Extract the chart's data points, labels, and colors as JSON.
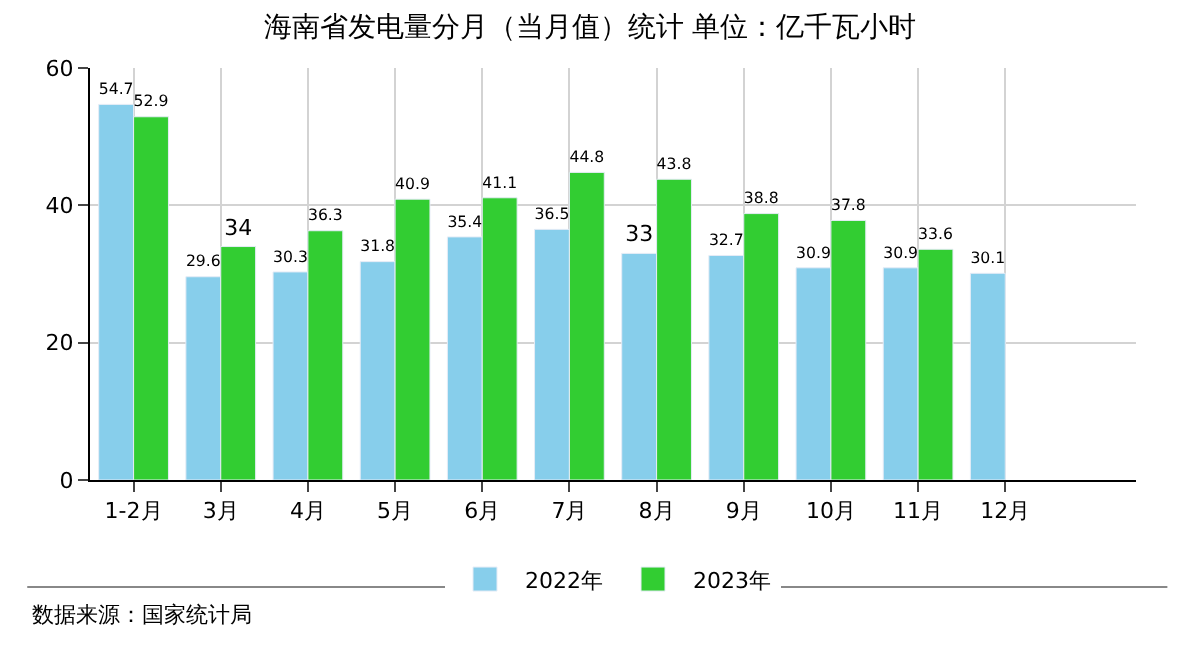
{
  "chart_data": {
    "type": "bar",
    "title": "海南省发电量分月（当月值）统计 单位：亿千瓦小时",
    "categories": [
      "1-2月",
      "3月",
      "4月",
      "5月",
      "6月",
      "7月",
      "8月",
      "9月",
      "10月",
      "11月",
      "12月"
    ],
    "series": [
      {
        "name": "2022年",
        "color": "#87ceeb",
        "values": [
          54.7,
          29.6,
          30.3,
          31.8,
          35.4,
          36.5,
          33,
          32.7,
          30.9,
          30.9,
          30.1
        ]
      },
      {
        "name": "2023年",
        "color": "#32cd32",
        "values": [
          52.9,
          34,
          36.3,
          40.9,
          41.1,
          44.8,
          43.8,
          38.8,
          37.8,
          33.6,
          null
        ]
      }
    ],
    "ylim": [
      0,
      60
    ],
    "yticks": [
      0,
      20,
      40,
      60
    ],
    "grid": true,
    "legend": "bottom",
    "data_labels": true,
    "annotations": [
      "数据来源：国家统计局"
    ]
  }
}
